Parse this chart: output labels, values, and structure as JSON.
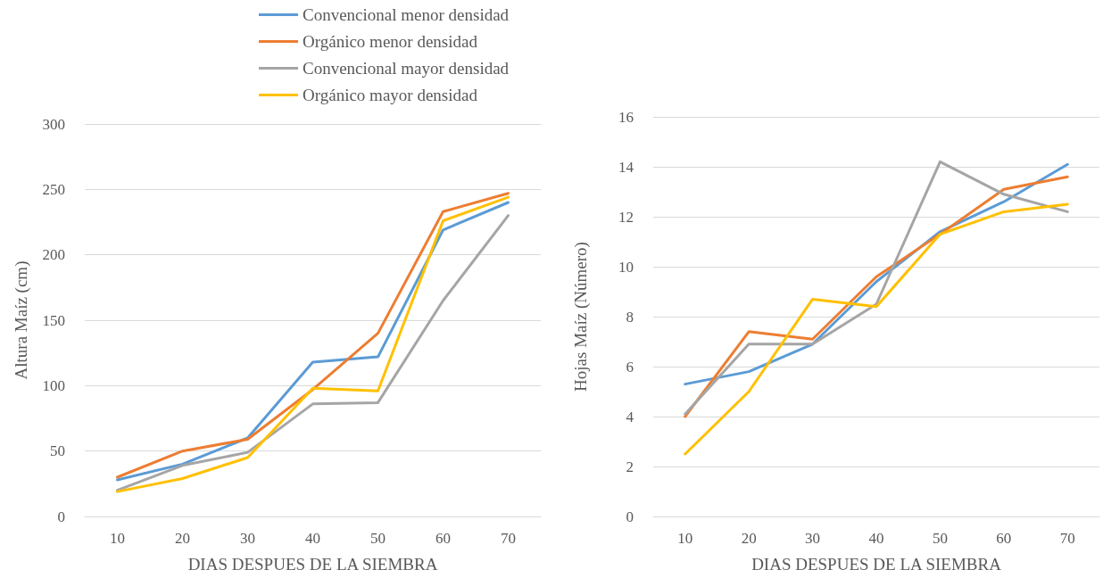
{
  "chart_data": [
    {
      "type": "line",
      "xlabel": "DIAS DESPUES DE LA SIEMBRA",
      "ylabel": "Altura Maíz (cm)",
      "categories": [
        "10",
        "20",
        "30",
        "40",
        "50",
        "60",
        "70"
      ],
      "ylim": [
        0,
        300
      ],
      "yticks": [
        0,
        50,
        100,
        150,
        200,
        250,
        300
      ],
      "grid": "y",
      "legend": "top",
      "marker": "none",
      "line_style": "solid",
      "series": [
        {
          "name": "Convencional menor densidad",
          "color": "#5b9bd5",
          "values": [
            28,
            40,
            60,
            118,
            122,
            219,
            240
          ]
        },
        {
          "name": "Orgánico menor densidad",
          "color": "#ed7d31",
          "values": [
            30,
            50,
            59,
            97,
            140,
            233,
            247
          ]
        },
        {
          "name": "Convencional mayor densidad",
          "color": "#a5a5a5",
          "values": [
            20,
            39,
            49,
            86,
            87,
            165,
            230
          ]
        },
        {
          "name": "Orgánico mayor densidad",
          "color": "#ffc000",
          "values": [
            19,
            29,
            45,
            98,
            96,
            226,
            244
          ]
        }
      ]
    },
    {
      "type": "line",
      "xlabel": "DIAS DESPUES DE LA SIEMBRA",
      "ylabel": "Hojas Maíz (Número)",
      "categories": [
        "10",
        "20",
        "30",
        "40",
        "50",
        "60",
        "70"
      ],
      "ylim": [
        0,
        16
      ],
      "yticks": [
        0,
        2,
        4,
        6,
        8,
        10,
        12,
        14,
        16
      ],
      "grid": "y",
      "legend": false,
      "marker": "none",
      "line_style": "solid",
      "series": [
        {
          "color": "#5b9bd5",
          "values": [
            5.3,
            5.8,
            6.9,
            9.4,
            11.4,
            12.6,
            14.1
          ]
        },
        {
          "color": "#ed7d31",
          "values": [
            4.0,
            7.4,
            7.1,
            9.6,
            11.3,
            13.1,
            13.6
          ]
        },
        {
          "color": "#a5a5a5",
          "values": [
            4.1,
            6.9,
            6.9,
            8.5,
            14.2,
            12.9,
            12.2
          ]
        },
        {
          "color": "#ffc000",
          "values": [
            2.5,
            5.0,
            8.7,
            8.4,
            11.3,
            12.2,
            12.5
          ]
        }
      ]
    }
  ]
}
